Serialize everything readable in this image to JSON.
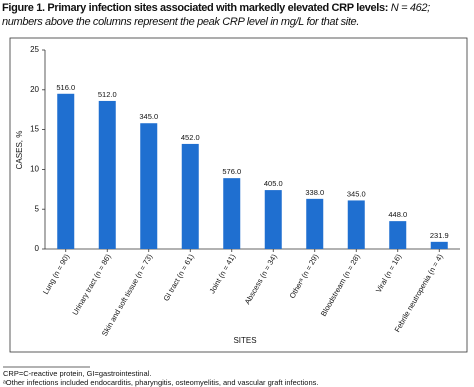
{
  "chart_data": {
    "type": "bar",
    "title": "Figure 1. Primary infection sites associated with markedly elevated CRP levels:",
    "subtitle": "N = 462; numbers above the columns represent the peak CRP level in mg/L for that site.",
    "categories": [
      "Lung (n = 90)",
      "Urinary tract (n = 86)",
      "Skin and soft tissue (n = 73)",
      "GI tract (n = 61)",
      "Joint (n = 41)",
      "Abscess (n = 34)",
      "Otherᵃ (n = 29)",
      "Bloodstream (n = 28)",
      "Viral (n = 16)",
      "Febrile neutropenia (n = 4)"
    ],
    "values": [
      19.5,
      18.6,
      15.8,
      13.2,
      8.9,
      7.4,
      6.3,
      6.1,
      3.5,
      0.9
    ],
    "bar_annotations": [
      "516.0",
      "512.0",
      "345.0",
      "452.0",
      "576.0",
      "405.0",
      "338.0",
      "345.0",
      "448.0",
      "231.9"
    ],
    "color": "#1f6fd0",
    "ylabel": "CASES, %",
    "xlabel": "SITES",
    "ylim": [
      0,
      25
    ],
    "yticks": [
      0,
      5,
      10,
      15,
      20,
      25
    ],
    "footnotes": [
      "CRP=C-reactive protein, GI=gastrointestinal.",
      "ᵃOther infections included endocarditis, pharyngitis, osteomyelitis, and vascular graft infections."
    ]
  }
}
